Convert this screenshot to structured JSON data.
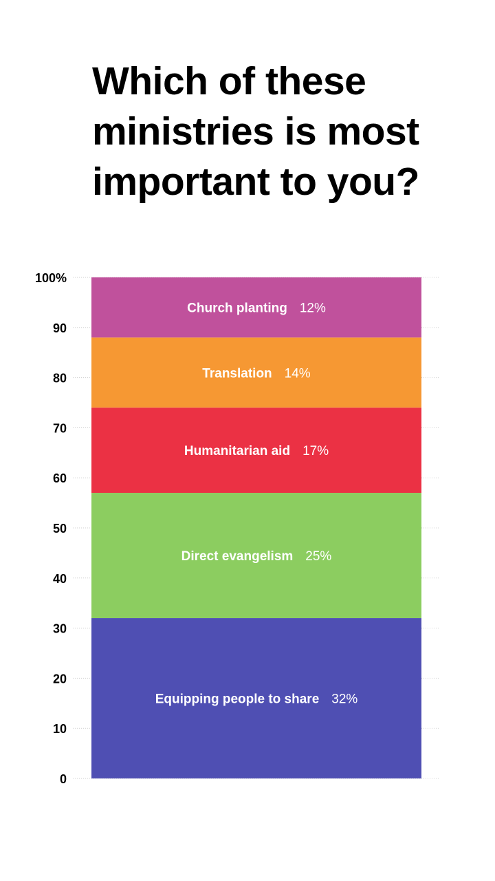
{
  "title": "Which of these ministries is most important to you?",
  "chart_data": {
    "type": "bar",
    "stacked": true,
    "orientation": "vertical",
    "title": "Which of these ministries is most important to you?",
    "xlabel": "",
    "ylabel": "",
    "ylim": [
      0,
      100
    ],
    "yticks": [
      {
        "value": 0,
        "label": "0"
      },
      {
        "value": 10,
        "label": "10"
      },
      {
        "value": 20,
        "label": "20"
      },
      {
        "value": 30,
        "label": "30"
      },
      {
        "value": 40,
        "label": "40"
      },
      {
        "value": 50,
        "label": "50"
      },
      {
        "value": 60,
        "label": "60"
      },
      {
        "value": 70,
        "label": "70"
      },
      {
        "value": 80,
        "label": "80"
      },
      {
        "value": 90,
        "label": "90"
      },
      {
        "value": 100,
        "label": "100%"
      }
    ],
    "grid": true,
    "legend": "none",
    "segments": [
      {
        "name": "Equipping people to share",
        "value": 32,
        "label": "32%",
        "color": "#4f4fb3"
      },
      {
        "name": "Direct evangelism",
        "value": 25,
        "label": "25%",
        "color": "#8ccd60"
      },
      {
        "name": "Humanitarian aid",
        "value": 17,
        "label": "17%",
        "color": "#eb3144"
      },
      {
        "name": "Translation",
        "value": 14,
        "label": "14%",
        "color": "#f69833"
      },
      {
        "name": "Church planting",
        "value": 12,
        "label": "12%",
        "color": "#c0519c"
      }
    ]
  }
}
